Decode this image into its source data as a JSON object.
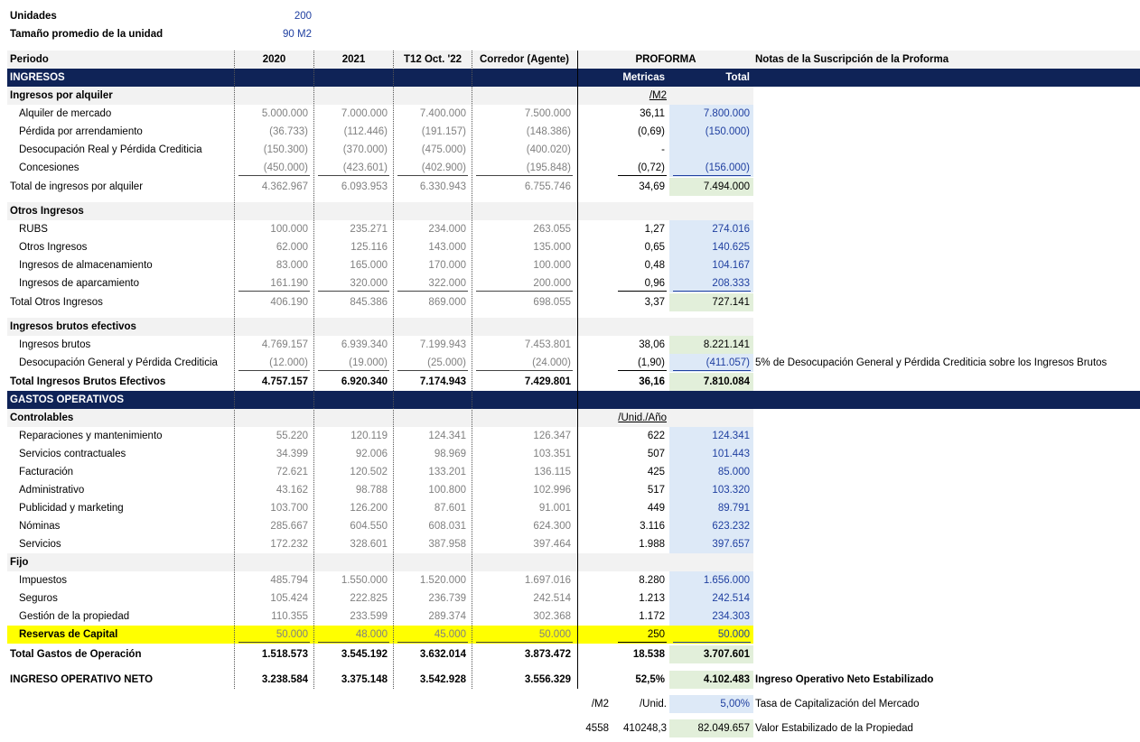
{
  "summary": [
    {
      "label": "Unidades",
      "value": "200"
    },
    {
      "label": "Tamaño promedio de la unidad",
      "value": "90 M2"
    }
  ],
  "header": {
    "label": "Periodo",
    "columns": [
      "2020",
      "2021",
      "T12 Oct. '22",
      "Corredor (Agente)"
    ],
    "proforma": "PROFORMA",
    "notes": "Notas de la Suscripción de la Proforma"
  },
  "sections": [
    {
      "title": "INGRESOS",
      "metric_header": "Metricas",
      "total_header": "Total",
      "groups": [
        {
          "title": "Ingresos por alquiler",
          "unit": "/M2",
          "rows": [
            {
              "label": "Alquiler de mercado",
              "values": [
                "5.000.000",
                "7.000.000",
                "7.400.000",
                "7.500.000"
              ],
              "metric": "36,11",
              "total": "7.800.000"
            },
            {
              "label": "Pérdida por arrendamiento",
              "values": [
                "(36.733)",
                "(112.446)",
                "(191.157)",
                "(148.386)"
              ],
              "metric": "(0,69)",
              "total": "(150.000)"
            },
            {
              "label": "Desocupación Real y Pérdida Crediticia",
              "values": [
                "(150.300)",
                "(370.000)",
                "(475.000)",
                "(400.020)"
              ],
              "metric": "-"
            },
            {
              "label": "Concesiones",
              "values": [
                "(450.000)",
                "(423.601)",
                "(402.900)",
                "(195.848)"
              ],
              "metric": "(0,72)",
              "total": "(156.000)"
            }
          ],
          "total": {
            "label": "Total de ingresos por alquiler",
            "values": [
              "4.362.967",
              "6.093.953",
              "6.330.943",
              "6.755.746"
            ],
            "metric": "34,69",
            "total": "7.494.000"
          }
        },
        {
          "title": "Otros Ingresos",
          "rows": [
            {
              "label": "RUBS",
              "values": [
                "100.000",
                "235.271",
                "234.000",
                "263.055"
              ],
              "metric": "1,27",
              "total": "274.016"
            },
            {
              "label": "Otros Ingresos",
              "values": [
                "62.000",
                "125.116",
                "143.000",
                "135.000"
              ],
              "metric": "0,65",
              "total": "140.625"
            },
            {
              "label": "Ingresos de almacenamiento",
              "values": [
                "83.000",
                "165.000",
                "170.000",
                "100.000"
              ],
              "metric": "0,48",
              "total": "104.167"
            },
            {
              "label": "Ingresos de aparcamiento",
              "values": [
                "161.190",
                "320.000",
                "322.000",
                "200.000"
              ],
              "metric": "0,96",
              "total": "208.333"
            }
          ],
          "total": {
            "label": "Total Otros Ingresos",
            "values": [
              "406.190",
              "845.386",
              "869.000",
              "698.055"
            ],
            "metric": "3,37",
            "total": "727.141"
          }
        },
        {
          "title": "Ingresos brutos efectivos",
          "rows": [
            {
              "label": "Ingresos brutos",
              "values": [
                "4.769.157",
                "6.939.340",
                "7.199.943",
                "7.453.801"
              ],
              "metric": "38,06",
              "total": "8.221.141",
              "total_fill": "#e2efda"
            },
            {
              "label": "Desocupación General y Pérdida Crediticia",
              "values": [
                "(12.000)",
                "(19.000)",
                "(25.000)",
                "(24.000)"
              ],
              "metric": "(1,90)",
              "total": "(411.057)",
              "note": "5% de Desocupación General y Pérdida Crediticia sobre los Ingresos Brutos"
            }
          ],
          "total": {
            "label": "Total Ingresos Brutos Efectivos",
            "values": [
              "4.757.157",
              "6.920.340",
              "7.174.943",
              "7.429.801"
            ],
            "metric": "36,16",
            "total": "7.810.084"
          }
        }
      ]
    },
    {
      "title": "GASTOS OPERATIVOS",
      "groups": [
        {
          "title": "Controlables",
          "unit": "/Unid./Año",
          "rows": [
            {
              "label": "Reparaciones y mantenimiento",
              "values": [
                "55.220",
                "120.119",
                "124.341",
                "126.347"
              ],
              "metric": "622",
              "total": "124.341"
            },
            {
              "label": "Servicios contractuales",
              "values": [
                "34.399",
                "92.006",
                "98.969",
                "103.351"
              ],
              "metric": "507",
              "total": "101.443"
            },
            {
              "label": "Facturación",
              "values": [
                "72.621",
                "120.502",
                "133.201",
                "136.115"
              ],
              "metric": "425",
              "total": "85.000"
            },
            {
              "label": "Administrativo",
              "values": [
                "43.162",
                "98.788",
                "100.800",
                "102.996"
              ],
              "metric": "517",
              "total": "103.320"
            },
            {
              "label": "Publicidad y marketing",
              "values": [
                "103.700",
                "126.200",
                "87.601",
                "91.001"
              ],
              "metric": "449",
              "total": "89.791"
            },
            {
              "label": "Nóminas",
              "values": [
                "285.667",
                "604.550",
                "608.031",
                "624.300"
              ],
              "metric": "3.116",
              "total": "623.232"
            },
            {
              "label": "Servicios",
              "values": [
                "172.232",
                "328.601",
                "387.958",
                "397.464"
              ],
              "metric": "1.988",
              "total": "397.657"
            }
          ]
        },
        {
          "title": "Fijo",
          "rows": [
            {
              "label": "Impuestos",
              "values": [
                "485.794",
                "1.550.000",
                "1.520.000",
                "1.697.016"
              ],
              "metric": "8.280",
              "total": "1.656.000"
            },
            {
              "label": "Seguros",
              "values": [
                "105.424",
                "222.825",
                "236.739",
                "242.514"
              ],
              "metric": "1.213",
              "total": "242.514"
            },
            {
              "label": "Gestión de la propiedad",
              "values": [
                "110.355",
                "233.599",
                "289.374",
                "302.368"
              ],
              "metric": "1.172",
              "total": "234.303"
            },
            {
              "label": "Reservas de Capital",
              "values": [
                "50.000",
                "48.000",
                "45.000",
                "50.000"
              ],
              "metric": "250",
              "total": "50.000",
              "highlight": "#ffff00"
            }
          ]
        }
      ],
      "total": {
        "label": "Total Gastos de Operación",
        "values": [
          "1.518.573",
          "3.545.192",
          "3.632.014",
          "3.873.472"
        ],
        "metric": "18.538",
        "total": "3.707.601"
      }
    }
  ],
  "net_operating_income": {
    "label": "INGRESO OPERATIVO NETO",
    "values": [
      "3.238.584",
      "3.375.148",
      "3.542.928",
      "3.556.329"
    ],
    "metric": "52,5%",
    "total": "4.102.483",
    "note": "Ingreso Operativo Neto Estabilizado"
  },
  "valuation": [
    {
      "cells": [
        "/M2",
        "/Unid."
      ],
      "total": "5,00%",
      "note": "Tasa de Capitalización del Mercado"
    },
    {
      "cells": [
        "4558",
        "410248,3"
      ],
      "total": "82.049.657",
      "note": "Valor Estabilizado de la Propiedad"
    }
  ]
}
